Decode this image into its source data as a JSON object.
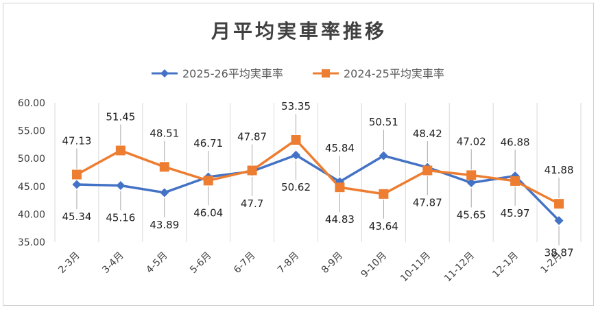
{
  "chart_data": {
    "type": "line",
    "title": "月平均実車率推移",
    "categories": [
      "2-3月",
      "3-4月",
      "4-5月",
      "5-6月",
      "6-7月",
      "7-8月",
      "8-9月",
      "9-10月",
      "10-11月",
      "11-12月",
      "12-1月",
      "1-2月"
    ],
    "series": [
      {
        "name": "2025-26平均実車率",
        "color": "#4472C4",
        "marker": "diamond",
        "values": [
          45.34,
          45.16,
          43.89,
          46.71,
          47.7,
          50.62,
          45.84,
          50.51,
          48.42,
          45.65,
          46.88,
          38.87
        ],
        "labels": [
          "45.34",
          "45.16",
          "43.89",
          "46.71",
          "47.7",
          "50.62",
          "45.84",
          "50.51",
          "48.42",
          "45.65",
          "46.88",
          "38.87"
        ],
        "label_side": [
          "below",
          "below",
          "below",
          "above",
          "below",
          "below",
          "above",
          "above",
          "above",
          "below",
          "above",
          "below"
        ]
      },
      {
        "name": "2024-25平均実車率",
        "color": "#ED7D31",
        "marker": "square",
        "values": [
          47.13,
          51.45,
          48.51,
          46.04,
          47.87,
          53.35,
          44.83,
          43.64,
          47.87,
          47.02,
          45.97,
          41.88
        ],
        "labels": [
          "47.13",
          "51.45",
          "48.51",
          "46.04",
          "47.87",
          "53.35",
          "44.83",
          "43.64",
          "47.87",
          "47.02",
          "45.97",
          "41.88"
        ],
        "label_side": [
          "above",
          "above",
          "above",
          "below",
          "above",
          "above",
          "below",
          "below",
          "below",
          "above",
          "below",
          "above"
        ]
      }
    ],
    "y_ticks": [
      "60.00",
      "55.00",
      "50.00",
      "45.00",
      "40.00",
      "35.00"
    ],
    "ylim": [
      35,
      60
    ],
    "grid": "vertical",
    "legend_position": "top"
  }
}
